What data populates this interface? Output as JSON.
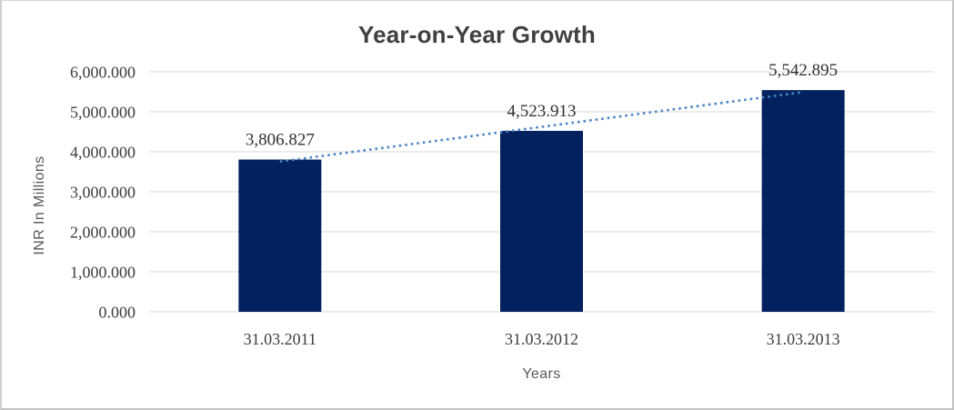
{
  "window": {
    "background": "#ffffff",
    "border_color": "#c2c2c2"
  },
  "chart_data": {
    "type": "bar",
    "title": "Year-on-Year Growth",
    "xlabel": "Years",
    "ylabel": "INR In Millions",
    "categories": [
      "31.03.2011",
      "31.03.2012",
      "31.03.2013"
    ],
    "values": [
      3806.827,
      4523.913,
      5542.895
    ],
    "data_labels": [
      "3,806.827",
      "4,523.913",
      "5,542.895"
    ],
    "ylim": [
      0,
      6000
    ],
    "ytick_step": 1000,
    "ytick_labels": [
      "0.000",
      "1,000.000",
      "2,000.000",
      "3,000.000",
      "4,000.000",
      "5,000.000",
      "6,000.000"
    ],
    "grid": true,
    "legend": "none",
    "bar_color": "#02215e",
    "gridline_color": "#d9d9d9",
    "title_color": "#404040",
    "axis_title_color": "#595959",
    "trendline": {
      "type": "linear",
      "style": "dotted",
      "color": "#4a86c8"
    }
  }
}
